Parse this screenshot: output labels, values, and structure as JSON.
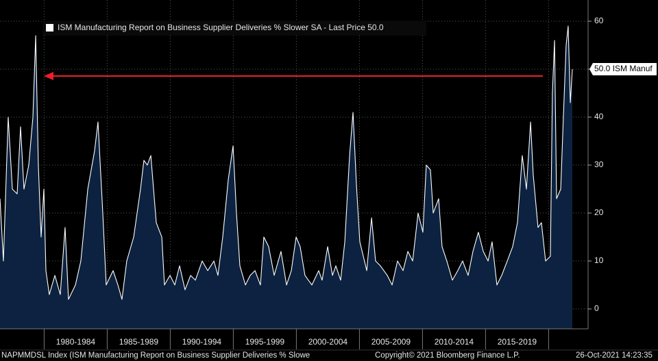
{
  "chart_data": {
    "type": "area",
    "legend": "ISM Manufacturing Report on Business Supplier Deliveries % Slower SA - Last Price 50.0",
    "last_price": {
      "value": 50,
      "label": "50.0 ISM Manuf"
    },
    "ticker_note": "NAPMMDSL Index (ISM Manufacturing Report on Business Supplier Deliveries % Slowe",
    "copyright": "Copyright© 2021 Bloomberg Finance L.P.",
    "timestamp": "26-Oct-2021 14:23:35",
    "x": [
      1976.5,
      1976.77,
      1977.15,
      1977.48,
      1977.86,
      1978.13,
      1978.4,
      1978.78,
      1979.11,
      1979.33,
      1979.54,
      1979.76,
      1979.98,
      1980.14,
      1980.41,
      1980.85,
      1981.28,
      1981.66,
      1981.93,
      1982.48,
      1982.91,
      1983.46,
      1984.0,
      1984.27,
      1984.65,
      1984.92,
      1985.47,
      1985.85,
      1986.17,
      1986.55,
      1987.1,
      1987.64,
      1987.91,
      1988.18,
      1988.46,
      1988.89,
      1989.33,
      1989.54,
      1989.98,
      1990.36,
      1990.74,
      1991.17,
      1991.61,
      1991.99,
      1992.53,
      1992.97,
      1993.46,
      1993.78,
      1994.16,
      1994.6,
      1994.98,
      1995.25,
      1995.52,
      1995.96,
      1996.34,
      1996.72,
      1997.15,
      1997.42,
      1997.8,
      1998.24,
      1998.78,
      1999.22,
      1999.6,
      1999.98,
      2000.3,
      2000.68,
      2001.23,
      2001.77,
      2002.04,
      2002.48,
      2002.86,
      2003.13,
      2003.51,
      2003.84,
      2004.22,
      2004.49,
      2004.76,
      2005.03,
      2005.58,
      2005.96,
      2006.28,
      2006.66,
      2007.21,
      2007.59,
      2008.02,
      2008.46,
      2008.84,
      2009.22,
      2009.65,
      2010.03,
      2010.3,
      2010.63,
      2010.85,
      2011.28,
      2011.55,
      2011.93,
      2012.37,
      2012.8,
      2013.18,
      2013.62,
      2014.0,
      2014.43,
      2014.82,
      2015.2,
      2015.52,
      2015.9,
      2016.28,
      2016.72,
      2017.15,
      2017.53,
      2017.91,
      2018.24,
      2018.57,
      2018.78,
      2019.16,
      2019.43,
      2019.76,
      2020.14,
      2020.3,
      2020.47,
      2020.63,
      2020.96,
      2021.17,
      2021.39,
      2021.55,
      2021.72,
      2021.88
    ],
    "series": [
      {
        "name": "ISM Manufacturing Report on Business Supplier Deliveries % Slower SA",
        "color": "#ffffff",
        "fill": "#0c2240",
        "values": [
          23,
          10,
          40,
          25,
          24,
          38,
          25,
          30,
          40,
          57,
          30,
          15,
          25,
          8,
          3,
          7,
          3,
          17,
          2,
          5,
          10,
          25,
          33,
          39,
          20,
          5,
          8,
          5,
          2,
          10,
          15,
          25,
          31,
          30,
          32,
          18,
          15,
          5,
          7,
          5,
          9,
          4,
          7,
          6,
          10,
          8,
          10,
          7,
          15,
          27,
          34,
          20,
          9,
          5,
          7,
          8,
          5,
          15,
          13,
          7,
          12,
          5,
          8,
          15,
          13,
          7,
          5,
          8,
          6,
          13,
          7,
          9,
          6,
          14,
          32,
          41,
          26,
          14,
          8,
          19,
          10,
          9,
          7,
          5,
          10,
          8,
          12,
          10,
          20,
          16,
          30,
          29,
          20,
          23,
          13,
          10,
          6,
          8,
          10,
          7,
          12,
          16,
          12,
          10,
          14,
          5,
          7,
          10,
          13,
          18,
          32,
          25,
          39,
          28,
          17,
          18,
          10,
          11,
          45,
          56,
          23,
          25,
          40,
          55,
          59,
          43,
          50
        ]
      }
    ],
    "xlim": [
      1976.5,
      2023.13
    ],
    "ylim": [
      -4.14,
      64.43
    ],
    "xticks": [
      1980,
      1985,
      1990,
      1995,
      2000,
      2005,
      2010,
      2015,
      2020
    ],
    "period_labels": [
      "1980-1984",
      "1985-1989",
      "1990-1994",
      "1995-1999",
      "2000-2004",
      "2005-2009",
      "2010-2014",
      "2015-2019"
    ],
    "yticks": [
      0,
      10,
      20,
      30,
      40,
      50,
      60
    ],
    "grid": true
  }
}
